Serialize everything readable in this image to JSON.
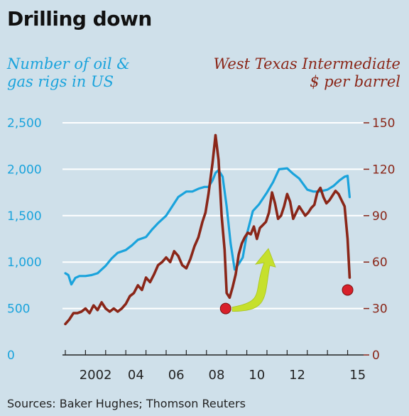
{
  "header": {
    "title": "Drilling down"
  },
  "footer": {
    "source": "Sources: Baker Hughes; Thomson Reuters"
  },
  "colors": {
    "background": "#cfe0ea",
    "rigs": "#1aa3dc",
    "oil": "#8a2618",
    "gridline": "#ffffff",
    "marker": "#d8202a",
    "arrow": "#c6e02c"
  },
  "chart_data": {
    "type": "line",
    "title": "Drilling down",
    "left_axis_label": [
      "Number of oil &",
      "gas rigs in US"
    ],
    "right_axis_label": [
      "West Texas Intermediate",
      "$ per barrel"
    ],
    "left_ylim": [
      0,
      2500
    ],
    "left_ticks": [
      "0",
      "500",
      "1,000",
      "1,500",
      "2,000",
      "2,500"
    ],
    "right_ylim": [
      0,
      150
    ],
    "right_ticks": [
      "0",
      "30",
      "60",
      "90",
      "120",
      "150"
    ],
    "xlim": [
      2001.0,
      2015.65
    ],
    "x_ticks": [
      {
        "x": 2002,
        "label": "2002"
      },
      {
        "x": 2004,
        "label": "04"
      },
      {
        "x": 2006,
        "label": "06"
      },
      {
        "x": 2008,
        "label": "08"
      },
      {
        "x": 2010,
        "label": "10"
      },
      {
        "x": 2012,
        "label": "12"
      },
      {
        "x": 2015,
        "label": "15"
      }
    ],
    "grid": true,
    "series": [
      {
        "name": "Number of oil & gas rigs in US",
        "axis": "left",
        "x": [
          2001.0,
          2001.15,
          2001.3,
          2001.5,
          2001.7,
          2002.0,
          2002.3,
          2002.6,
          2003.0,
          2003.3,
          2003.6,
          2004.0,
          2004.3,
          2004.6,
          2005.0,
          2005.3,
          2005.6,
          2006.0,
          2006.3,
          2006.6,
          2007.0,
          2007.3,
          2007.6,
          2007.9,
          2008.1,
          2008.3,
          2008.45,
          2008.6,
          2008.8,
          2009.0,
          2009.2,
          2009.4,
          2009.6,
          2009.8,
          2010.0,
          2010.3,
          2010.6,
          2011.0,
          2011.3,
          2011.6,
          2012.0,
          2012.3,
          2012.6,
          2013.0,
          2013.3,
          2013.6,
          2014.0,
          2014.3,
          2014.6,
          2014.85,
          2015.0,
          2015.1
        ],
        "values": [
          880,
          860,
          760,
          830,
          850,
          850,
          860,
          880,
          960,
          1040,
          1100,
          1130,
          1180,
          1240,
          1270,
          1350,
          1420,
          1500,
          1600,
          1700,
          1760,
          1760,
          1790,
          1810,
          1810,
          1880,
          1960,
          1990,
          1920,
          1600,
          1200,
          920,
          980,
          1050,
          1300,
          1550,
          1620,
          1750,
          1860,
          2000,
          2010,
          1950,
          1900,
          1780,
          1760,
          1760,
          1780,
          1820,
          1880,
          1920,
          1930,
          1700
        ]
      },
      {
        "name": "West Texas Intermediate $ per barrel",
        "axis": "right",
        "x": [
          2001.0,
          2001.2,
          2001.4,
          2001.6,
          2001.8,
          2002.0,
          2002.2,
          2002.4,
          2002.6,
          2002.8,
          2003.0,
          2003.2,
          2003.4,
          2003.6,
          2003.8,
          2004.0,
          2004.2,
          2004.4,
          2004.6,
          2004.8,
          2005.0,
          2005.2,
          2005.4,
          2005.6,
          2005.8,
          2006.0,
          2006.2,
          2006.4,
          2006.6,
          2006.8,
          2007.0,
          2007.2,
          2007.4,
          2007.6,
          2007.8,
          2007.95,
          2008.1,
          2008.3,
          2008.45,
          2008.6,
          2008.75,
          2008.9,
          2009.0,
          2009.15,
          2009.3,
          2009.45,
          2009.6,
          2009.75,
          2009.9,
          2010.05,
          2010.2,
          2010.35,
          2010.5,
          2010.65,
          2010.8,
          2010.95,
          2011.1,
          2011.25,
          2011.4,
          2011.55,
          2011.7,
          2011.85,
          2012.0,
          2012.15,
          2012.3,
          2012.45,
          2012.6,
          2012.75,
          2012.9,
          2013.05,
          2013.2,
          2013.35,
          2013.5,
          2013.65,
          2013.8,
          2013.95,
          2014.1,
          2014.25,
          2014.4,
          2014.55,
          2014.7,
          2014.85,
          2015.0,
          2015.1
        ],
        "values": [
          20,
          23,
          27,
          27,
          28,
          30,
          27,
          32,
          29,
          34,
          30,
          28,
          30,
          28,
          30,
          33,
          38,
          40,
          45,
          42,
          50,
          47,
          52,
          58,
          60,
          63,
          60,
          67,
          64,
          58,
          56,
          62,
          70,
          76,
          86,
          92,
          104,
          124,
          142,
          126,
          90,
          68,
          40,
          37,
          44,
          52,
          65,
          72,
          76,
          79,
          78,
          83,
          75,
          82,
          84,
          86,
          92,
          105,
          98,
          88,
          90,
          96,
          104,
          99,
          88,
          92,
          96,
          93,
          90,
          92,
          95,
          97,
          105,
          108,
          102,
          98,
          100,
          103,
          106,
          104,
          100,
          96,
          75,
          50
        ]
      }
    ],
    "markers": [
      {
        "x": 2008.95,
        "y": 30,
        "axis": "right"
      },
      {
        "x": 2015.0,
        "y": 42,
        "axis": "right"
      }
    ],
    "arrow": {
      "from": [
        2009.0,
        30
      ],
      "to": [
        2011.0,
        66
      ],
      "axis": "right"
    }
  }
}
